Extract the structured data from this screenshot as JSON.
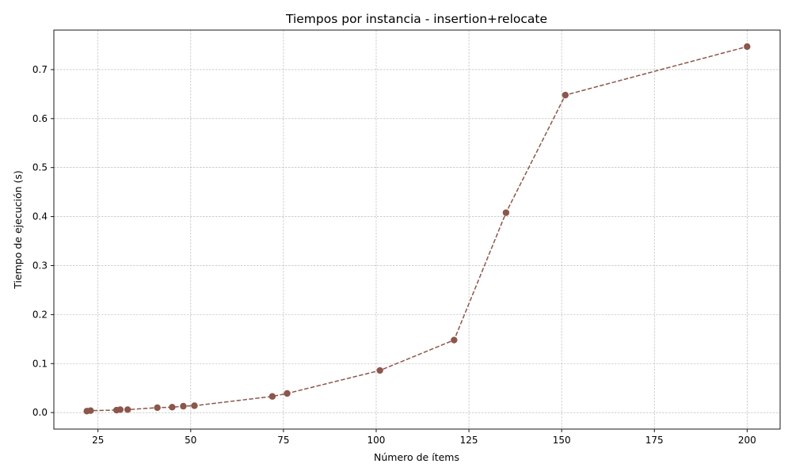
{
  "chart_data": {
    "type": "line",
    "title": "Tiempos por instancia - insertion+relocate",
    "xlabel": "Número de ítems",
    "ylabel": "Tiempo de ejecución (s)",
    "xlim": [
      13.1,
      208.9
    ],
    "ylim": [
      -0.0337,
      0.7807
    ],
    "xticks": [
      25,
      50,
      75,
      100,
      125,
      150,
      175,
      200
    ],
    "yticks": [
      0.0,
      0.1,
      0.2,
      0.3,
      0.4,
      0.5,
      0.6,
      0.7
    ],
    "xtick_labels": [
      "25",
      "50",
      "75",
      "100",
      "125",
      "150",
      "175",
      "200"
    ],
    "ytick_labels": [
      "0.0",
      "0.1",
      "0.2",
      "0.3",
      "0.4",
      "0.5",
      "0.6",
      "0.7"
    ],
    "grid": true,
    "line_style": "dashed",
    "marker": "circle",
    "color": "#8c564b",
    "series": [
      {
        "x": [
          22,
          23,
          30,
          31,
          33,
          41,
          45,
          48,
          51,
          72,
          76,
          101,
          121,
          135,
          151,
          200
        ],
        "y": [
          0.003,
          0.004,
          0.005,
          0.006,
          0.006,
          0.01,
          0.011,
          0.013,
          0.014,
          0.033,
          0.039,
          0.086,
          0.148,
          0.408,
          0.648,
          0.747
        ]
      }
    ]
  }
}
